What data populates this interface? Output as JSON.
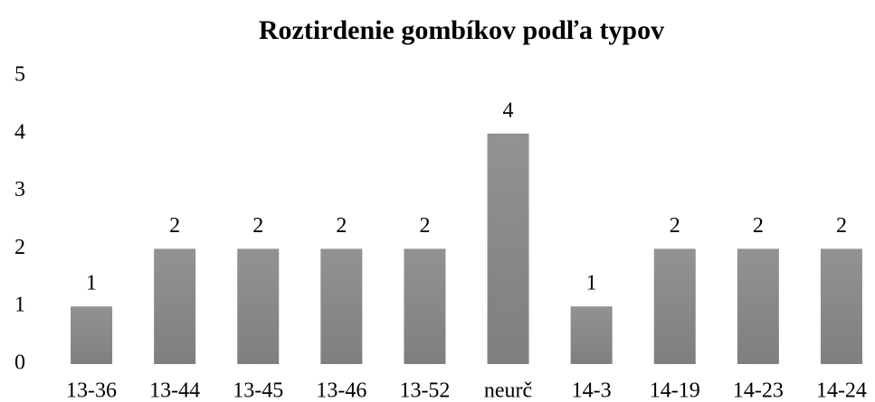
{
  "chart_data": {
    "type": "bar",
    "title": "Roztirdenie gombíkov podľa typov",
    "categories": [
      "13-36",
      "13-44",
      "13-45",
      "13-46",
      "13-52",
      "neurč",
      "14-3",
      "14-19",
      "14-23",
      "14-24"
    ],
    "values": [
      1,
      2,
      2,
      2,
      2,
      4,
      1,
      2,
      2,
      2
    ],
    "color": "#7f7f7f",
    "ylim": [
      0,
      5
    ],
    "yticks": [
      0,
      1,
      2,
      3,
      4,
      5
    ],
    "grid": false
  }
}
